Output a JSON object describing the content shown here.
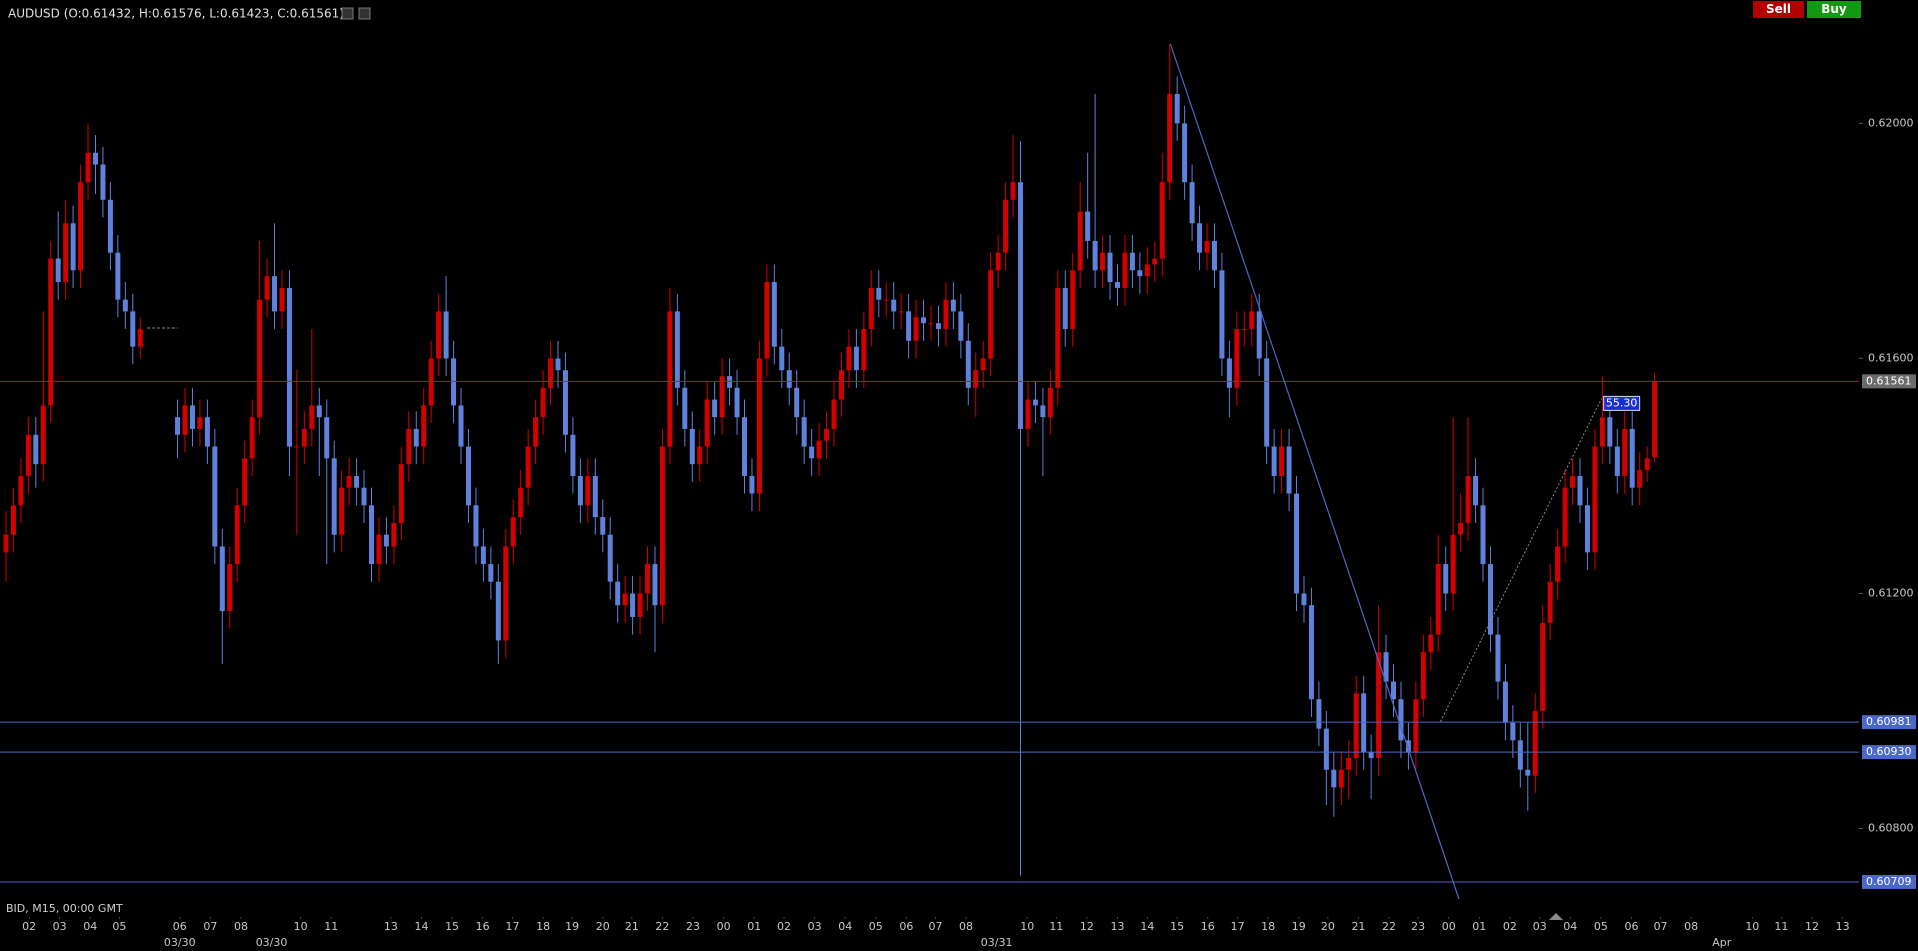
{
  "chart_data": {
    "type": "candlestick",
    "title": "AUDUSD (O:0.61432, H:0.61576, L:0.61423, C:0.61561)",
    "up_color": "#d30000",
    "down_color": "#5f82dc",
    "open": [
      0.6127,
      0.613,
      0.6135,
      0.614,
      0.6147,
      0.6142,
      0.6152,
      0.6177,
      0.6173,
      0.6183,
      0.6175,
      0.619,
      0.6195,
      0.6193,
      0.6187,
      0.6178,
      0.617,
      0.6168,
      0.6162,
      null,
      null,
      null,
      null,
      0.615,
      0.6147,
      0.6152,
      0.6148,
      0.615,
      0.6145,
      0.6128,
      0.6117,
      0.6125,
      0.6135,
      0.6143,
      0.615,
      0.617,
      0.6174,
      0.6168,
      0.6172,
      0.6145,
      0.6145,
      0.6148,
      0.6152,
      0.615,
      0.6143,
      0.613,
      0.6138,
      0.614,
      0.6138,
      0.6135,
      0.6125,
      0.613,
      0.6128,
      0.6132,
      0.6142,
      0.6148,
      0.6145,
      0.6152,
      0.616,
      0.6168,
      0.616,
      0.6152,
      0.6145,
      0.6135,
      0.6128,
      0.6125,
      0.6122,
      0.6112,
      0.6128,
      0.6133,
      0.6138,
      0.6145,
      0.615,
      0.6155,
      0.616,
      0.6158,
      0.6147,
      0.614,
      0.6135,
      0.614,
      0.6133,
      0.613,
      0.6122,
      0.6118,
      0.612,
      0.6116,
      0.612,
      0.6125,
      0.6118,
      0.6145,
      0.6168,
      0.6155,
      0.6148,
      0.6142,
      0.6145,
      0.6153,
      0.615,
      0.6157,
      0.6155,
      0.615,
      0.614,
      0.6137,
      0.616,
      0.6173,
      0.6162,
      0.6158,
      0.6155,
      0.615,
      0.6145,
      0.6143,
      0.6146,
      0.6148,
      0.6153,
      0.6158,
      0.6162,
      0.6158,
      0.6165,
      0.6172,
      0.617,
      0.617,
      0.6168,
      0.6168,
      0.6163,
      0.6167,
      0.6166,
      0.6166,
      0.6165,
      0.617,
      0.6168,
      0.6163,
      0.6155,
      0.6158,
      0.616,
      0.6175,
      0.6178,
      0.6187,
      0.619,
      0.6148,
      0.6153,
      0.6152,
      0.615,
      0.6155,
      0.6172,
      0.6165,
      0.6175,
      0.6185,
      0.618,
      0.6175,
      0.6178,
      0.6173,
      0.6172,
      0.6178,
      0.6175,
      0.6174,
      0.6176,
      0.6177,
      0.619,
      0.6205,
      0.62,
      0.619,
      0.6183,
      0.6178,
      0.618,
      0.6175,
      0.616,
      0.6155,
      0.6165,
      0.6165,
      0.6168,
      0.616,
      0.6145,
      0.614,
      0.6145,
      0.6137,
      0.612,
      0.6118,
      0.6102,
      0.6097,
      0.609,
      0.6087,
      0.609,
      0.6092,
      0.6103,
      0.6093,
      0.6092,
      0.611,
      0.6105,
      0.6102,
      0.6095,
      0.6093,
      0.6102,
      0.611,
      0.6113,
      0.6125,
      0.612,
      0.613,
      0.6132,
      0.614,
      0.6135,
      0.6125,
      0.6113,
      0.6105,
      0.6098,
      0.6095,
      0.609,
      0.6089,
      0.61,
      0.6115,
      0.6122,
      0.6128,
      0.6138,
      0.614,
      0.6135,
      0.6127,
      0.6145,
      0.615,
      0.6145,
      0.614,
      0.6148,
      0.6138,
      0.6141,
      0.61432
    ],
    "high": [
      0.6134,
      0.6138,
      0.6143,
      0.615,
      0.615,
      0.6168,
      0.618,
      0.6185,
      0.6187,
      0.6186,
      0.6193,
      0.62,
      0.6198,
      0.6196,
      0.619,
      0.6181,
      0.6173,
      0.6171,
      0.6167,
      null,
      null,
      null,
      null,
      0.6153,
      0.6155,
      0.6155,
      0.6153,
      0.6153,
      0.6148,
      0.6131,
      0.6128,
      0.6138,
      0.6146,
      0.6153,
      0.618,
      0.6177,
      0.6183,
      0.6175,
      0.6175,
      0.6158,
      0.6151,
      0.6165,
      0.6155,
      0.6153,
      0.6146,
      0.6141,
      0.6143,
      0.6143,
      0.6141,
      0.6138,
      0.6133,
      0.6133,
      0.6135,
      0.6145,
      0.6151,
      0.6151,
      0.6155,
      0.6163,
      0.6171,
      0.6174,
      0.6163,
      0.6155,
      0.6148,
      0.6138,
      0.6131,
      0.6128,
      0.6125,
      0.6131,
      0.6136,
      0.6141,
      0.6148,
      0.6153,
      0.6158,
      0.6163,
      0.6163,
      0.6161,
      0.615,
      0.6143,
      0.6143,
      0.6143,
      0.6136,
      0.6133,
      0.6125,
      0.6123,
      0.6123,
      0.6123,
      0.6128,
      0.6128,
      0.6148,
      0.6172,
      0.6171,
      0.6158,
      0.6151,
      0.6148,
      0.6156,
      0.6156,
      0.616,
      0.616,
      0.6158,
      0.6153,
      0.6143,
      0.6163,
      0.6176,
      0.6176,
      0.6165,
      0.6161,
      0.6158,
      0.6153,
      0.6148,
      0.6149,
      0.6151,
      0.6156,
      0.6161,
      0.6165,
      0.6165,
      0.6168,
      0.6175,
      0.6175,
      0.6173,
      0.6173,
      0.6171,
      0.6171,
      0.617,
      0.617,
      0.6169,
      0.6169,
      0.6173,
      0.6173,
      0.6171,
      0.6166,
      0.6161,
      0.6163,
      0.6178,
      0.6181,
      0.619,
      0.6198,
      0.6197,
      0.6156,
      0.6156,
      0.6155,
      0.6158,
      0.6175,
      0.6175,
      0.6178,
      0.619,
      0.6195,
      0.6205,
      0.6181,
      0.6181,
      0.6176,
      0.6181,
      0.6181,
      0.6178,
      0.6179,
      0.618,
      0.6195,
      0.62135,
      0.6208,
      0.6203,
      0.6193,
      0.6186,
      0.6183,
      0.6183,
      0.6178,
      0.6163,
      0.6168,
      0.6168,
      0.6171,
      0.6171,
      0.6163,
      0.6148,
      0.6148,
      0.6148,
      0.614,
      0.6123,
      0.6121,
      0.6105,
      0.61,
      0.6093,
      0.6093,
      0.6095,
      0.6106,
      0.6106,
      0.6096,
      0.6118,
      0.6113,
      0.6108,
      0.6105,
      0.6098,
      0.6105,
      0.6113,
      0.6116,
      0.613,
      0.6128,
      0.615,
      0.6137,
      0.615,
      0.6143,
      0.6138,
      0.6128,
      0.6116,
      0.6108,
      0.6101,
      0.6098,
      0.6098,
      0.6103,
      0.6118,
      0.6125,
      0.6131,
      0.6141,
      0.6143,
      0.6143,
      0.6138,
      0.6148,
      0.6157,
      0.6153,
      0.6148,
      0.6151,
      0.6151,
      0.6144,
      0.6145,
      0.61576
    ],
    "low": [
      0.6122,
      0.6127,
      0.6132,
      0.6137,
      0.6138,
      0.6139,
      0.6149,
      0.617,
      0.617,
      0.6172,
      0.6172,
      0.6187,
      0.6188,
      0.6184,
      0.6175,
      0.6167,
      0.6165,
      0.6159,
      0.616,
      null,
      null,
      null,
      null,
      0.6143,
      0.6144,
      0.6145,
      0.6145,
      0.6142,
      0.6125,
      0.6108,
      0.6114,
      0.6122,
      0.6132,
      0.614,
      0.6147,
      0.6167,
      0.6165,
      0.6165,
      0.614,
      0.613,
      0.6142,
      0.6145,
      0.614,
      0.6125,
      0.6127,
      0.6127,
      0.6135,
      0.6135,
      0.6132,
      0.6122,
      0.6122,
      0.6125,
      0.6125,
      0.6129,
      0.6139,
      0.6142,
      0.6142,
      0.6149,
      0.6157,
      0.6157,
      0.6149,
      0.6142,
      0.6132,
      0.6125,
      0.6122,
      0.6119,
      0.6108,
      0.6109,
      0.6125,
      0.613,
      0.6135,
      0.6142,
      0.6147,
      0.6152,
      0.6155,
      0.6144,
      0.6137,
      0.6132,
      0.6132,
      0.613,
      0.6127,
      0.6119,
      0.6115,
      0.6115,
      0.6113,
      0.6113,
      0.6117,
      0.611,
      0.6115,
      0.6142,
      0.6152,
      0.6145,
      0.6139,
      0.6139,
      0.6142,
      0.6147,
      0.6147,
      0.6152,
      0.6147,
      0.6137,
      0.6134,
      0.6134,
      0.6157,
      0.6159,
      0.6155,
      0.6152,
      0.6147,
      0.6142,
      0.614,
      0.614,
      0.6143,
      0.6145,
      0.615,
      0.6155,
      0.6155,
      0.6155,
      0.6162,
      0.6167,
      0.6167,
      0.6165,
      0.6165,
      0.616,
      0.616,
      0.6163,
      0.6163,
      0.6162,
      0.6162,
      0.6165,
      0.616,
      0.6152,
      0.615,
      0.6155,
      0.6157,
      0.6172,
      0.6175,
      0.6184,
      0.6072,
      0.6145,
      0.6149,
      0.614,
      0.6147,
      0.6152,
      0.6162,
      0.6162,
      0.6172,
      0.6177,
      0.6172,
      0.6172,
      0.617,
      0.6169,
      0.6169,
      0.6172,
      0.6171,
      0.6171,
      0.6173,
      0.6174,
      0.6187,
      0.6197,
      0.6187,
      0.618,
      0.6175,
      0.6175,
      0.6172,
      0.6157,
      0.615,
      0.6152,
      0.6162,
      0.6162,
      0.6157,
      0.6142,
      0.6137,
      0.6137,
      0.6134,
      0.6117,
      0.6115,
      0.6099,
      0.6094,
      0.6084,
      0.6082,
      0.6084,
      0.6085,
      0.6089,
      0.609,
      0.6085,
      0.6089,
      0.6102,
      0.6099,
      0.6092,
      0.609,
      0.609,
      0.6099,
      0.6107,
      0.611,
      0.6117,
      0.6117,
      0.6127,
      0.6129,
      0.6132,
      0.6122,
      0.611,
      0.6102,
      0.6095,
      0.6092,
      0.6087,
      0.6083,
      0.6086,
      0.6097,
      0.6112,
      0.6119,
      0.6125,
      0.6135,
      0.6132,
      0.6124,
      0.6124,
      0.6142,
      0.6142,
      0.6137,
      0.6137,
      0.6135,
      0.6135,
      0.6139,
      0.61423
    ],
    "close": [
      0.613,
      0.6135,
      0.614,
      0.6147,
      0.6142,
      0.6152,
      0.6177,
      0.6173,
      0.6183,
      0.6175,
      0.619,
      0.6195,
      0.6193,
      0.6187,
      0.6178,
      0.617,
      0.6168,
      0.6162,
      0.6165,
      null,
      null,
      null,
      null,
      0.6147,
      0.6152,
      0.6148,
      0.615,
      0.6145,
      0.6128,
      0.6117,
      0.6125,
      0.6135,
      0.6143,
      0.615,
      0.617,
      0.6174,
      0.6168,
      0.6172,
      0.6145,
      0.6145,
      0.6148,
      0.6152,
      0.615,
      0.6143,
      0.613,
      0.6138,
      0.614,
      0.6138,
      0.6135,
      0.6125,
      0.613,
      0.6128,
      0.6132,
      0.6142,
      0.6148,
      0.6145,
      0.6152,
      0.616,
      0.6168,
      0.616,
      0.6152,
      0.6145,
      0.6135,
      0.6128,
      0.6125,
      0.6122,
      0.6112,
      0.6128,
      0.6133,
      0.6138,
      0.6145,
      0.615,
      0.6155,
      0.616,
      0.6158,
      0.6147,
      0.614,
      0.6135,
      0.614,
      0.6133,
      0.613,
      0.6122,
      0.6118,
      0.612,
      0.6116,
      0.612,
      0.6125,
      0.6118,
      0.6145,
      0.6168,
      0.6155,
      0.6148,
      0.6142,
      0.6145,
      0.6153,
      0.615,
      0.6157,
      0.6155,
      0.615,
      0.614,
      0.6137,
      0.616,
      0.6173,
      0.6162,
      0.6158,
      0.6155,
      0.615,
      0.6145,
      0.6143,
      0.6146,
      0.6148,
      0.6153,
      0.6158,
      0.6162,
      0.6158,
      0.6165,
      0.6172,
      0.617,
      0.617,
      0.6168,
      0.6168,
      0.6163,
      0.6167,
      0.6166,
      0.6166,
      0.6165,
      0.617,
      0.6168,
      0.6163,
      0.6155,
      0.6158,
      0.616,
      0.6175,
      0.6178,
      0.6187,
      0.619,
      0.6148,
      0.6153,
      0.6152,
      0.615,
      0.6155,
      0.6172,
      0.6165,
      0.6175,
      0.6185,
      0.618,
      0.6175,
      0.6178,
      0.6173,
      0.6172,
      0.6178,
      0.6175,
      0.6174,
      0.6176,
      0.6177,
      0.619,
      0.6205,
      0.62,
      0.619,
      0.6183,
      0.6178,
      0.618,
      0.6175,
      0.616,
      0.6155,
      0.6165,
      0.6165,
      0.6168,
      0.616,
      0.6145,
      0.614,
      0.6145,
      0.6137,
      0.612,
      0.6118,
      0.6102,
      0.6097,
      0.609,
      0.6087,
      0.609,
      0.6092,
      0.6103,
      0.6093,
      0.6092,
      0.611,
      0.6105,
      0.6102,
      0.6095,
      0.6093,
      0.6102,
      0.611,
      0.6113,
      0.6125,
      0.612,
      0.613,
      0.6132,
      0.614,
      0.6135,
      0.6125,
      0.6113,
      0.6105,
      0.6098,
      0.6095,
      0.609,
      0.6089,
      0.61,
      0.6115,
      0.6122,
      0.6128,
      0.6138,
      0.614,
      0.6135,
      0.6127,
      0.6145,
      0.615,
      0.6145,
      0.614,
      0.6148,
      0.6138,
      0.6141,
      0.6143,
      0.61561
    ],
    "xlim": [
      -0.8,
      248.4
    ],
    "xticks": [
      {
        "value": 3.1,
        "label": "02"
      },
      {
        "value": 7.2,
        "label": "03"
      },
      {
        "value": 11.3,
        "label": "04"
      },
      {
        "value": 15.2,
        "label": "05"
      },
      {
        "value": 23.3,
        "label": "06"
      },
      {
        "value": 27.4,
        "label": "07"
      },
      {
        "value": 31.5,
        "label": "08"
      },
      {
        "value": 39.5,
        "label": "10"
      },
      {
        "value": 43.6,
        "label": "11"
      },
      {
        "value": 51.6,
        "label": "13"
      },
      {
        "value": 55.7,
        "label": "14"
      },
      {
        "value": 59.8,
        "label": "15"
      },
      {
        "value": 63.9,
        "label": "16"
      },
      {
        "value": 67.9,
        "label": "17"
      },
      {
        "value": 72.0,
        "label": "18"
      },
      {
        "value": 75.9,
        "label": "19"
      },
      {
        "value": 80.0,
        "label": "20"
      },
      {
        "value": 83.9,
        "label": "21"
      },
      {
        "value": 88.0,
        "label": "22"
      },
      {
        "value": 92.1,
        "label": "23"
      },
      {
        "value": 96.2,
        "label": "00"
      },
      {
        "value": 100.3,
        "label": "01"
      },
      {
        "value": 104.3,
        "label": "02"
      },
      {
        "value": 108.4,
        "label": "03"
      },
      {
        "value": 112.5,
        "label": "04"
      },
      {
        "value": 116.6,
        "label": "05"
      },
      {
        "value": 120.7,
        "label": "06"
      },
      {
        "value": 124.6,
        "label": "07"
      },
      {
        "value": 128.7,
        "label": "08"
      },
      {
        "value": 136.9,
        "label": "10"
      },
      {
        "value": 140.8,
        "label": "11"
      },
      {
        "value": 144.9,
        "label": "12"
      },
      {
        "value": 149.0,
        "label": "13"
      },
      {
        "value": 153.0,
        "label": "14"
      },
      {
        "value": 157.0,
        "label": "15"
      },
      {
        "value": 161.1,
        "label": "16"
      },
      {
        "value": 165.1,
        "label": "17"
      },
      {
        "value": 169.2,
        "label": "18"
      },
      {
        "value": 173.3,
        "label": "19"
      },
      {
        "value": 177.2,
        "label": "20"
      },
      {
        "value": 181.3,
        "label": "21"
      },
      {
        "value": 185.4,
        "label": "22"
      },
      {
        "value": 189.3,
        "label": "23"
      },
      {
        "value": 193.4,
        "label": "00"
      },
      {
        "value": 197.5,
        "label": "01"
      },
      {
        "value": 201.6,
        "label": "02"
      },
      {
        "value": 205.6,
        "label": "03"
      },
      {
        "value": 209.7,
        "label": "04"
      },
      {
        "value": 213.8,
        "label": "05"
      },
      {
        "value": 217.9,
        "label": "06"
      },
      {
        "value": 221.8,
        "label": "07"
      },
      {
        "value": 225.9,
        "label": "08"
      },
      {
        "value": 234.1,
        "label": "10"
      },
      {
        "value": 238.0,
        "label": "11"
      },
      {
        "value": 242.1,
        "label": "12"
      },
      {
        "value": 246.2,
        "label": "13"
      }
    ],
    "date_ticks": [
      {
        "value": 23.3,
        "label": "03/30"
      },
      {
        "value": 35.6,
        "label": "03/30"
      },
      {
        "value": 132.8,
        "label": "03/31"
      },
      {
        "value": 230.0,
        "label": "Apr"
      }
    ],
    "ylim": [
      0.6068,
      0.6221
    ],
    "yticks": [
      {
        "value": 0.608,
        "label": "0.60800"
      },
      {
        "value": 0.612,
        "label": "0.61200"
      },
      {
        "value": 0.616,
        "label": "0.61600"
      },
      {
        "value": 0.62,
        "label": "0.62000"
      }
    ],
    "hlines": [
      {
        "value": 0.61561,
        "color": "#b81c1c",
        "label_bg": "#6b6b6b"
      },
      {
        "value": 0.60981,
        "color": "#4a68c8",
        "label_bg": "#4a68c8"
      },
      {
        "value": 0.6093,
        "label": "0.60930",
        "color": "#4a68c8",
        "label_bg": "#4a68c8"
      },
      {
        "value": 0.60709,
        "color": "#4a68c8",
        "label_bg": "#4a68c8"
      }
    ],
    "trendlines": [
      {
        "x": [
          156.1,
          195.6
        ],
        "y": [
          0.62135,
          0.60649
        ],
        "color": "#4a68c8"
      }
    ],
    "annotations": [
      {
        "x": [
          192.3,
          213.9
        ],
        "y": [
          0.60982,
          0.61532
        ],
        "label": "55.30",
        "color": "#8a8a8a"
      }
    ],
    "footer": "BID, M15, 00:00 GMT"
  },
  "toolbar": {
    "sell": "Sell",
    "buy": "Buy"
  }
}
